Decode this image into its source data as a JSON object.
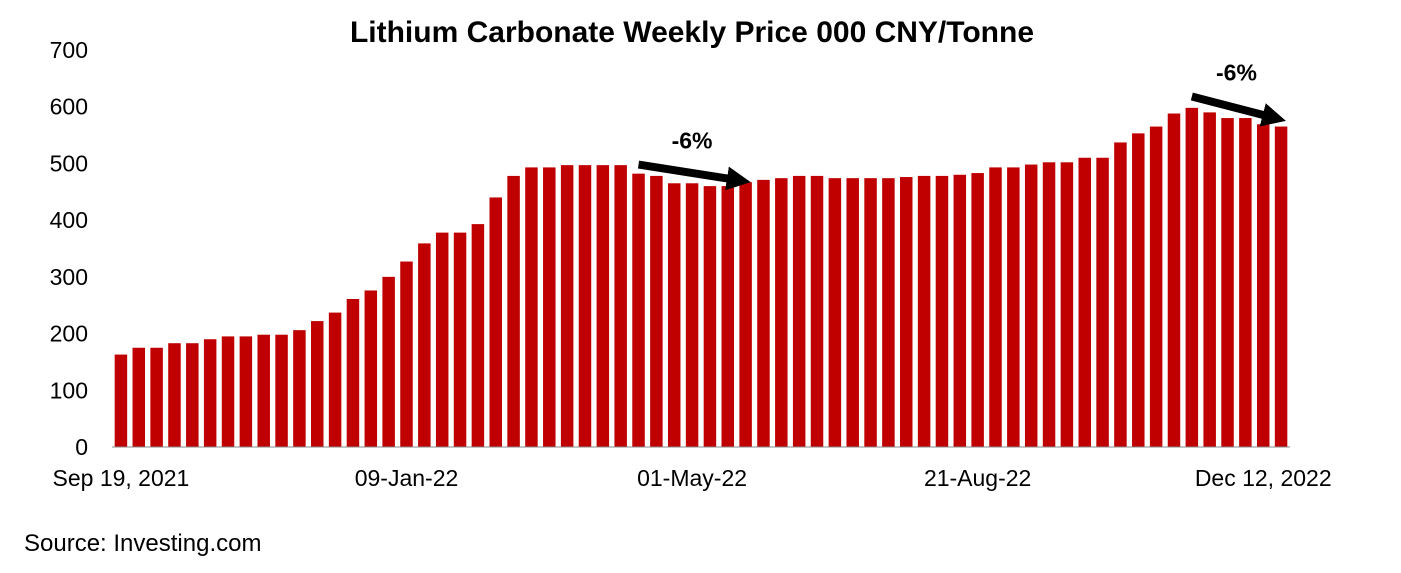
{
  "chart_data": {
    "type": "bar",
    "title": "Lithium Carbonate Weekly Price 000 CNY/Tonne",
    "xlabel": "",
    "ylabel": "",
    "ylim": [
      0,
      700
    ],
    "yticks": [
      0,
      100,
      200,
      300,
      400,
      500,
      600,
      700
    ],
    "x_tick_labels": [
      {
        "index": 0,
        "label": "Sep 19, 2021"
      },
      {
        "index": 16,
        "label": "09-Jan-22"
      },
      {
        "index": 32,
        "label": "01-May-22"
      },
      {
        "index": 48,
        "label": "21-Aug-22"
      },
      {
        "index": 64,
        "label": "Dec 12, 2022"
      }
    ],
    "values": [
      163,
      175,
      175,
      183,
      183,
      190,
      195,
      195,
      198,
      198,
      206,
      222,
      237,
      261,
      276,
      300,
      327,
      359,
      378,
      378,
      393,
      440,
      478,
      493,
      493,
      497,
      497,
      497,
      497,
      482,
      478,
      465,
      465,
      460,
      460,
      467,
      471,
      474,
      478,
      478,
      474,
      474,
      474,
      474,
      476,
      478,
      478,
      480,
      483,
      493,
      493,
      498,
      502,
      502,
      510,
      510,
      537,
      553,
      565,
      588,
      598,
      590,
      580,
      580,
      569,
      565
    ],
    "bar_color": "#c00000",
    "grid": false,
    "legend": "none",
    "annotations": [
      {
        "text": "-6%",
        "from_index": 29,
        "from_value": 498,
        "to_index": 35,
        "to_value": 470
      },
      {
        "text": "-6%",
        "from_index": 60,
        "from_value": 618,
        "to_index": 65,
        "to_value": 580
      }
    ]
  },
  "source": "Source: Investing.com"
}
